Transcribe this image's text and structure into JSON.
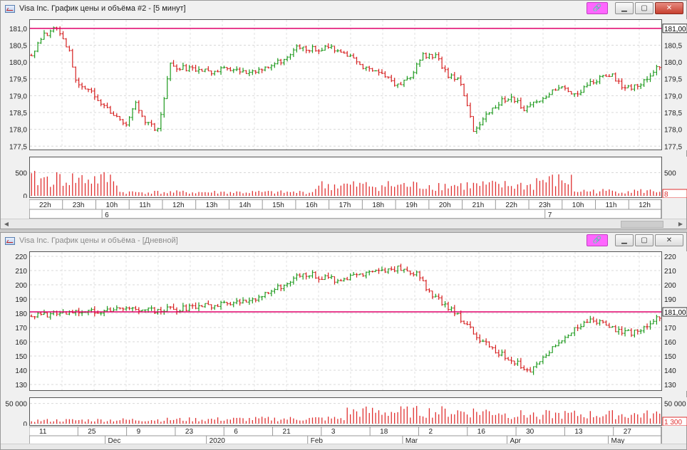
{
  "windows": [
    {
      "title": "Visa Inc. График цены и объёма #2 - [5 минут]",
      "price_labels": [
        "181,0",
        "180,5",
        "180,0",
        "179,5",
        "179,0",
        "178,5",
        "178,0",
        "177,5"
      ],
      "volume_labels": [
        "500",
        "0"
      ],
      "last_price": "181,00",
      "last_volume": "8",
      "time_labels": [
        "22h",
        "23h",
        "10h",
        "11h",
        "12h",
        "13h",
        "14h",
        "15h",
        "16h",
        "17h",
        "18h",
        "19h",
        "20h",
        "21h",
        "22h",
        "23h",
        "10h",
        "11h",
        "12h"
      ],
      "day_labels": [
        "6",
        "7"
      ]
    },
    {
      "title": "Visa Inc. График цены и объёма - [Дневной]",
      "price_labels": [
        "220",
        "210",
        "200",
        "190",
        "180",
        "170",
        "160",
        "150",
        "140",
        "130"
      ],
      "volume_labels": [
        "50 000",
        "0"
      ],
      "last_price": "181,00",
      "last_volume": "1 300",
      "time_labels": [
        "11",
        "25",
        "9",
        "23",
        "6",
        "21",
        "3",
        "18",
        "2",
        "16",
        "30",
        "13",
        "27"
      ],
      "month_labels": [
        "Dec",
        "2020",
        "Feb",
        "Mar",
        "Apr",
        "May"
      ],
      "month_inline_label": "May"
    }
  ],
  "colors": {
    "up": "#1e9a1e",
    "down": "#d62020",
    "level": "#e0006a",
    "volume": "#e03030",
    "accent_button": "#ff66ff"
  },
  "chart_data": [
    {
      "type": "candlestick",
      "title": "Visa Inc. График цены и объёма #2 - [5 минут]",
      "ylim": [
        177.4,
        181.25
      ],
      "y_ticks": [
        177.5,
        178.0,
        178.5,
        179.0,
        179.5,
        180.0,
        180.5,
        181.0
      ],
      "horizontal_levels": [
        181.0
      ],
      "bars": 200,
      "close_path": [
        [
          0,
          180.2
        ],
        [
          4,
          180.8
        ],
        [
          8,
          181.0
        ],
        [
          12,
          180.3
        ],
        [
          14,
          179.4
        ],
        [
          20,
          179.0
        ],
        [
          26,
          178.4
        ],
        [
          30,
          178.1
        ],
        [
          33,
          178.8
        ],
        [
          36,
          178.2
        ],
        [
          40,
          178.0
        ],
        [
          44,
          179.9
        ],
        [
          50,
          179.8
        ],
        [
          56,
          179.7
        ],
        [
          62,
          179.8
        ],
        [
          68,
          179.7
        ],
        [
          74,
          179.8
        ],
        [
          80,
          180.1
        ],
        [
          84,
          180.4
        ],
        [
          90,
          180.4
        ],
        [
          96,
          180.4
        ],
        [
          100,
          180.2
        ],
        [
          104,
          179.9
        ],
        [
          108,
          179.7
        ],
        [
          112,
          179.6
        ],
        [
          116,
          179.3
        ],
        [
          120,
          179.6
        ],
        [
          124,
          180.2
        ],
        [
          128,
          180.2
        ],
        [
          132,
          179.6
        ],
        [
          136,
          179.4
        ],
        [
          140,
          178.0
        ],
        [
          144,
          178.4
        ],
        [
          148,
          178.8
        ],
        [
          152,
          179.0
        ],
        [
          156,
          178.6
        ],
        [
          160,
          178.8
        ],
        [
          164,
          179.1
        ],
        [
          168,
          179.3
        ],
        [
          172,
          179.0
        ],
        [
          176,
          179.3
        ],
        [
          180,
          179.5
        ],
        [
          184,
          179.6
        ],
        [
          188,
          179.2
        ],
        [
          192,
          179.3
        ],
        [
          196,
          179.6
        ],
        [
          200,
          180.0
        ]
      ],
      "volume_ylim": [
        0,
        800
      ],
      "volume_ticks": [
        0,
        500
      ]
    },
    {
      "type": "candlestick",
      "title": "Visa Inc. График цены и объёма - [Дневной]",
      "ylim": [
        126,
        223
      ],
      "y_ticks": [
        130,
        140,
        150,
        160,
        170,
        180,
        190,
        200,
        210,
        220
      ],
      "horizontal_levels": [
        181.0
      ],
      "bars": 200,
      "close_path": [
        [
          0,
          178
        ],
        [
          10,
          180
        ],
        [
          20,
          181
        ],
        [
          30,
          183
        ],
        [
          40,
          182
        ],
        [
          50,
          184
        ],
        [
          60,
          186
        ],
        [
          66,
          188
        ],
        [
          72,
          191
        ],
        [
          78,
          198
        ],
        [
          84,
          205
        ],
        [
          88,
          208
        ],
        [
          92,
          205
        ],
        [
          98,
          203
        ],
        [
          104,
          207
        ],
        [
          110,
          209
        ],
        [
          116,
          212
        ],
        [
          122,
          208
        ],
        [
          126,
          195
        ],
        [
          130,
          188
        ],
        [
          134,
          180
        ],
        [
          138,
          172
        ],
        [
          142,
          162
        ],
        [
          146,
          155
        ],
        [
          150,
          150
        ],
        [
          154,
          145
        ],
        [
          158,
          138
        ],
        [
          162,
          150
        ],
        [
          166,
          158
        ],
        [
          170,
          165
        ],
        [
          174,
          172
        ],
        [
          178,
          175
        ],
        [
          182,
          171
        ],
        [
          186,
          168
        ],
        [
          190,
          166
        ],
        [
          194,
          170
        ],
        [
          198,
          176
        ],
        [
          200,
          180
        ]
      ],
      "volume_ylim": [
        0,
        60000
      ],
      "volume_ticks": [
        0,
        50000
      ]
    }
  ]
}
